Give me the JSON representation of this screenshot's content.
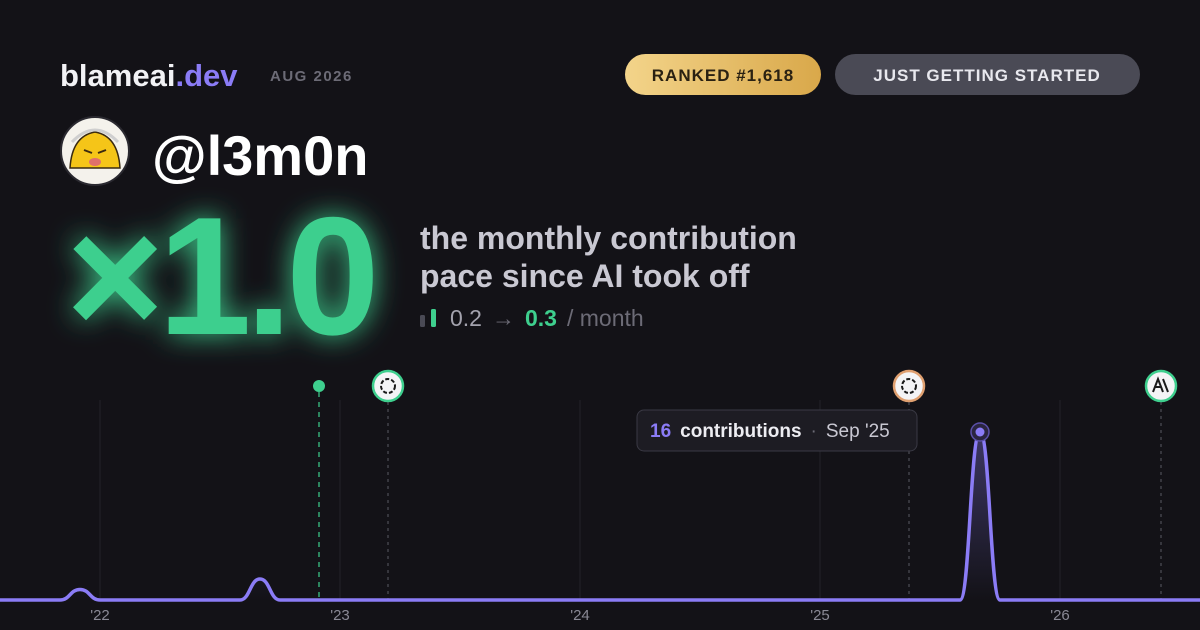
{
  "brand": {
    "name": "blameai",
    "tld": ".dev",
    "period": "AUG 2026"
  },
  "badges": {
    "rank": "RANKED #1,618",
    "status": "JUST GETTING STARTED"
  },
  "user": {
    "handle": "@l3m0n"
  },
  "pace": {
    "multiplier": "×1.0",
    "description": [
      "the monthly contribution",
      "pace since AI took off"
    ],
    "before": 0.2,
    "arrow": "→",
    "after": 0.3,
    "unit": "/ month"
  },
  "chart_data": {
    "type": "line",
    "categories": [
      null,
      null,
      null,
      null,
      null,
      "'22",
      null,
      null,
      null,
      null,
      null,
      null,
      null,
      null,
      null,
      null,
      null,
      "'23",
      null,
      null,
      null,
      null,
      null,
      null,
      null,
      null,
      null,
      null,
      null,
      "'24",
      null,
      null,
      null,
      null,
      null,
      null,
      null,
      null,
      null,
      null,
      null,
      "'25",
      null,
      null,
      null,
      null,
      null,
      null,
      null,
      null,
      null,
      null,
      null,
      "'26",
      null,
      null,
      null,
      null,
      null,
      null,
      null
    ],
    "series": [
      {
        "name": "contributions",
        "color": "#8b7cf6",
        "values": [
          0,
          0,
          0,
          0,
          1,
          0,
          0,
          0,
          0,
          0,
          0,
          0,
          0,
          2,
          0,
          0,
          0,
          0,
          0,
          0,
          0,
          0,
          0,
          0,
          0,
          0,
          0,
          0,
          0,
          0,
          0,
          0,
          0,
          0,
          0,
          0,
          0,
          0,
          0,
          0,
          0,
          0,
          0,
          0,
          0,
          0,
          0,
          0,
          0,
          16,
          0,
          0,
          0,
          0,
          0,
          0,
          0,
          0,
          0,
          0,
          0
        ]
      }
    ],
    "ylim": [
      0,
      16
    ],
    "events": [
      15.95,
      19.4,
      45.45,
      58.05
    ],
    "tooltip": {
      "label": "contributions",
      "date": "Sep '25"
    }
  }
}
